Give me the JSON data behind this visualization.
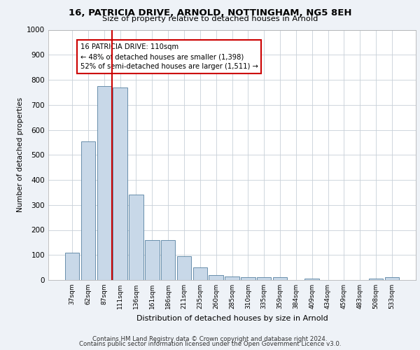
{
  "title1": "16, PATRICIA DRIVE, ARNOLD, NOTTINGHAM, NG5 8EH",
  "title2": "Size of property relative to detached houses in Arnold",
  "xlabel": "Distribution of detached houses by size in Arnold",
  "ylabel": "Number of detached properties",
  "categories": [
    "37sqm",
    "62sqm",
    "87sqm",
    "111sqm",
    "136sqm",
    "161sqm",
    "186sqm",
    "211sqm",
    "235sqm",
    "260sqm",
    "285sqm",
    "310sqm",
    "335sqm",
    "359sqm",
    "384sqm",
    "409sqm",
    "434sqm",
    "459sqm",
    "483sqm",
    "508sqm",
    "533sqm"
  ],
  "values": [
    110,
    555,
    775,
    770,
    340,
    160,
    160,
    95,
    50,
    20,
    15,
    10,
    10,
    10,
    0,
    5,
    0,
    0,
    0,
    5,
    10
  ],
  "bar_color": "#c8d8e8",
  "bar_edge_color": "#5580a0",
  "vline_color": "#cc0000",
  "annotation_text": "16 PATRICIA DRIVE: 110sqm\n← 48% of detached houses are smaller (1,398)\n52% of semi-detached houses are larger (1,511) →",
  "annotation_box_color": "#ffffff",
  "annotation_box_edge": "#cc0000",
  "ylim": [
    0,
    1000
  ],
  "yticks": [
    0,
    100,
    200,
    300,
    400,
    500,
    600,
    700,
    800,
    900,
    1000
  ],
  "footer1": "Contains HM Land Registry data © Crown copyright and database right 2024.",
  "footer2": "Contains public sector information licensed under the Open Government Licence v3.0.",
  "bg_color": "#eef2f7",
  "plot_bg_color": "#ffffff",
  "grid_color": "#c8d0d8"
}
